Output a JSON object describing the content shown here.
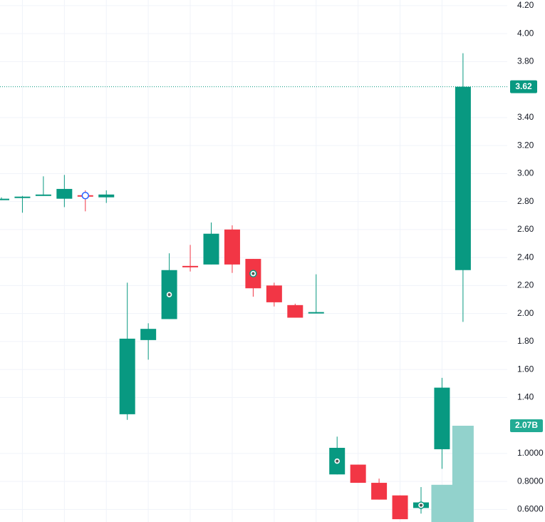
{
  "chart_data": {
    "type": "candlestick",
    "open": [
      2.81,
      2.83,
      2.84,
      2.82,
      2.845,
      2.83,
      1.28,
      1.81,
      1.96,
      2.34,
      2.35,
      2.6,
      2.39,
      2.2,
      2.06,
      2.0,
      0.85,
      0.92,
      0.79,
      0.7,
      0.61,
      1.03,
      2.31
    ],
    "high": [
      2.83,
      2.84,
      2.98,
      2.99,
      2.88,
      2.88,
      2.22,
      1.93,
      2.43,
      2.49,
      2.65,
      2.63,
      2.39,
      2.22,
      2.07,
      2.28,
      1.12,
      0.92,
      0.82,
      0.7,
      0.76,
      1.54,
      3.86
    ],
    "low": [
      2.81,
      2.72,
      2.84,
      2.76,
      2.73,
      2.79,
      1.24,
      1.67,
      1.96,
      2.3,
      2.35,
      2.29,
      2.12,
      2.05,
      1.97,
      2.0,
      0.85,
      0.79,
      0.67,
      0.53,
      0.57,
      0.89,
      1.94
    ],
    "close": [
      2.82,
      2.835,
      2.85,
      2.89,
      2.84,
      2.85,
      1.82,
      1.89,
      2.31,
      2.33,
      2.57,
      2.35,
      2.18,
      2.08,
      1.97,
      2.01,
      1.04,
      0.79,
      0.67,
      0.53,
      0.65,
      1.47,
      3.62
    ],
    "up_color": "#089981",
    "down_color": "#f23645",
    "volume": {
      "values": [
        null,
        null,
        null,
        null,
        null,
        null,
        null,
        null,
        null,
        null,
        null,
        null,
        null,
        null,
        null,
        null,
        null,
        null,
        null,
        null,
        null,
        800000000,
        2070000000
      ],
      "value_labels": [
        null,
        null,
        null,
        null,
        null,
        null,
        null,
        null,
        null,
        null,
        null,
        null,
        null,
        null,
        null,
        null,
        null,
        null,
        null,
        null,
        null,
        null,
        "2.07B"
      ],
      "color": "#92d2cc"
    },
    "last_price": 3.62,
    "ylim": [
      0.51,
      4.24
    ],
    "yticks": [
      {
        "value": 4.2,
        "label": "4.20"
      },
      {
        "value": 4.0,
        "label": "4.00"
      },
      {
        "value": 3.8,
        "label": "3.80"
      },
      {
        "value": 3.4,
        "label": "3.40"
      },
      {
        "value": 3.2,
        "label": "3.20"
      },
      {
        "value": 3.0,
        "label": "3.00"
      },
      {
        "value": 2.8,
        "label": "2.80"
      },
      {
        "value": 2.6,
        "label": "2.60"
      },
      {
        "value": 2.4,
        "label": "2.40"
      },
      {
        "value": 2.2,
        "label": "2.20"
      },
      {
        "value": 2.0,
        "label": "2.00"
      },
      {
        "value": 1.8,
        "label": "1.80"
      },
      {
        "value": 1.6,
        "label": "1.60"
      },
      {
        "value": 1.4,
        "label": "1.40"
      },
      {
        "value": 1.0,
        "label": "1.0000"
      },
      {
        "value": 0.8,
        "label": "0.8000"
      },
      {
        "value": 0.6,
        "label": "0.6000"
      }
    ],
    "grid": true
  }
}
